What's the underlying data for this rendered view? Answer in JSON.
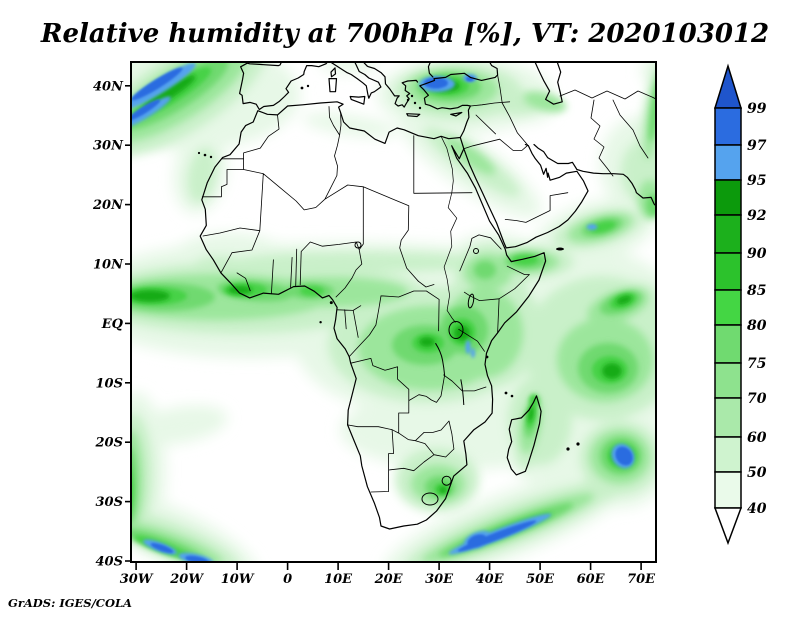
{
  "title": "Relative humidity at 700hPa [%], VT: 2020103012",
  "credit": "GrADS: IGES/COLA",
  "axes": {
    "x_ticks": [
      "30W",
      "20W",
      "10W",
      "0",
      "10E",
      "20E",
      "30E",
      "40E",
      "50E",
      "60E",
      "70E"
    ],
    "y_ticks": [
      "40N",
      "30N",
      "20N",
      "10N",
      "EQ",
      "10S",
      "20S",
      "30S",
      "40S"
    ]
  },
  "colorbar": {
    "labels": [
      "99",
      "97",
      "95",
      "92",
      "90",
      "85",
      "80",
      "75",
      "70",
      "60",
      "50",
      "40"
    ],
    "colors_top_to_bottom": [
      "#2b6ce0",
      "#55a3ee",
      "#0c9a0c",
      "#1cb01c",
      "#2cc22c",
      "#44d644",
      "#70da70",
      "#8ee28e",
      "#aae9aa",
      "#cff3cf",
      "#eafaea"
    ],
    "arrow_top_color": "#1f55cc",
    "arrow_bottom_color": "#ffffff"
  },
  "chart_data": {
    "type": "heatmap",
    "title": "Relative humidity at 700hPa [%], VT: 2020103012",
    "variable": "Relative humidity",
    "level": "700hPa",
    "units": "%",
    "valid_time": "2020103012",
    "source": "GrADS: IGES/COLA",
    "lon_range": [
      -31,
      73.5
    ],
    "lat_range": [
      -40.2,
      44
    ],
    "xlabel_ticks_deg": [
      -30,
      -20,
      -10,
      0,
      10,
      20,
      30,
      40,
      50,
      60,
      70
    ],
    "ylabel_ticks_deg": [
      40,
      30,
      20,
      10,
      0,
      -10,
      -20,
      -30,
      -40
    ],
    "contour_levels": [
      40,
      50,
      60,
      70,
      75,
      80,
      85,
      90,
      92,
      95,
      97,
      99
    ],
    "palette_low_to_high": [
      "#eafaea",
      "#cff3cf",
      "#aae9aa",
      "#8ee28e",
      "#70da70",
      "#44d644",
      "#2cc22c",
      "#1cb01c",
      "#0c9a0c",
      "#55a3ee",
      "#2b6ce0"
    ],
    "background_below_40": "#ffffff",
    "legend_position": "right",
    "grid": false,
    "features": [
      {
        "region": "NE Atlantic off Iberia/Morocco (NW corner)",
        "lon": [
          -31,
          -14
        ],
        "lat": [
          34,
          44
        ],
        "rh": "70 to >99, diagonal moist band with blue >97 streaks"
      },
      {
        "region": "Turkey / Aegean / Marmara",
        "lon": [
          24,
          42
        ],
        "lat": [
          36,
          44
        ],
        "rh": "60 to >97, blue core over Marmara and NW Anatolia"
      },
      {
        "region": "Atlantic ITCZ and Guinea coast",
        "lon": [
          -31,
          10
        ],
        "lat": [
          0,
          8
        ],
        "rh": "70-92 zonal band, darkest cores 85-92"
      },
      {
        "region": "Congo basin / Central Africa",
        "lon": [
          10,
          30
        ],
        "lat": [
          -8,
          6
        ],
        "rh": "60-90 broad moist area"
      },
      {
        "region": "East Africa / Lake Victoria rift",
        "lon": [
          29,
          40
        ],
        "lat": [
          -6,
          5
        ],
        "rh": "70-95 with tiny >95 slivers"
      },
      {
        "region": "Ethiopian highlands",
        "lon": [
          34,
          40
        ],
        "lat": [
          5,
          12
        ],
        "rh": "60-85"
      },
      {
        "region": "northern Somalia",
        "lon": [
          44,
          51
        ],
        "lat": [
          8,
          11
        ],
        "rh": "70-90 patch"
      },
      {
        "region": "Arabian Sea",
        "lon": [
          55,
          68
        ],
        "lat": [
          12,
          18
        ],
        "rh": "60-90 patch with small >95 speck"
      },
      {
        "region": "west India coast (right edge)",
        "lon": [
          70,
          73.5
        ],
        "lat": [
          8,
          20
        ],
        "rh": "60-90 coastal strip"
      },
      {
        "region": "equatorial / SW Indian Ocean",
        "lon": [
          45,
          73.5
        ],
        "lat": [
          -20,
          0
        ],
        "rh": "50-90 broad with darker cores"
      },
      {
        "region": "east of Madagascar",
        "lon": [
          60,
          70
        ],
        "lat": [
          -27,
          -18
        ],
        "rh": "70 to >99 blob with large blue core"
      },
      {
        "region": "Madagascar eastern side",
        "lon": [
          46,
          51
        ],
        "lat": [
          -22,
          -12
        ],
        "rh": "60-92"
      },
      {
        "region": "southern Africa band",
        "lon": [
          12,
          41
        ],
        "lat": [
          -20,
          -10
        ],
        "rh": "40-70 pale band"
      },
      {
        "region": "South Africa east interior (Drakensberg)",
        "lon": [
          24,
          32
        ],
        "lat": [
          -33,
          -26
        ],
        "rh": "50-92"
      },
      {
        "region": "frontal band SE of South Africa",
        "lon": [
          27,
          50
        ],
        "lat": [
          -41,
          -31
        ],
        "rh": "60 to >99 diagonal band, long blue core"
      },
      {
        "region": "South Atlantic frontal band (SW corner)",
        "lon": [
          -31,
          -12
        ],
        "lat": [
          -41,
          -31
        ],
        "rh": "60 to >99 diagonal band with blue cores"
      },
      {
        "region": "Benguela / left-edge strip",
        "lon": [
          -31,
          -28
        ],
        "lat": [
          -34,
          -21
        ],
        "rh": "60-92"
      },
      {
        "region": "Red Sea / Egypt streak",
        "lon": [
          30,
          40
        ],
        "lat": [
          15,
          30
        ],
        "rh": "40-70 narrow streak"
      },
      {
        "region": "Pakistan / NE corner",
        "lon": [
          63,
          73.5
        ],
        "lat": [
          22,
          32
        ],
        "rh": "40-60 pale"
      },
      {
        "region": "Sahara, central Mediterranean, interior Arabia, Kalahari coast, subtropical oceans",
        "lon": null,
        "lat": null,
        "rh": "below 40 (white)"
      }
    ]
  }
}
